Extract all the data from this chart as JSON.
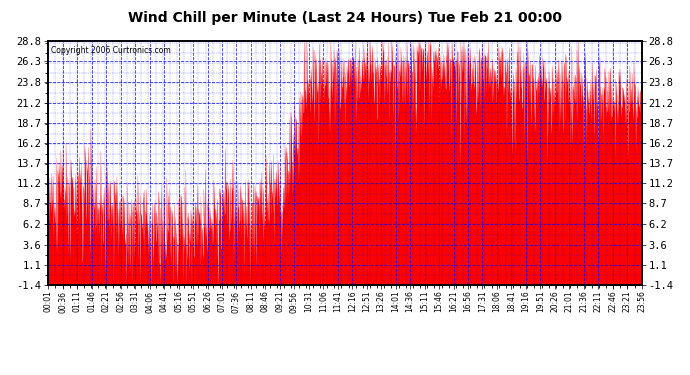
{
  "title": "Wind Chill per Minute (Last 24 Hours) Tue Feb 21 00:00",
  "copyright": "Copyright 2006 Curtronics.com",
  "background_color": "#ffffff",
  "plot_bg_color": "#ffffff",
  "grid_color": "#0000ff",
  "line_color": "#ff0000",
  "border_color": "#000000",
  "ylim": [
    -1.4,
    28.8
  ],
  "yticks": [
    -1.4,
    1.1,
    3.6,
    6.2,
    8.7,
    11.2,
    13.7,
    16.2,
    18.7,
    21.2,
    23.8,
    26.3,
    28.8
  ],
  "xtick_labels": [
    "00:01",
    "00:36",
    "01:11",
    "01:46",
    "02:21",
    "02:56",
    "03:31",
    "04:06",
    "04:41",
    "05:16",
    "05:51",
    "06:26",
    "07:01",
    "07:36",
    "08:11",
    "08:46",
    "09:21",
    "09:56",
    "10:31",
    "11:06",
    "11:41",
    "12:16",
    "12:51",
    "13:26",
    "14:01",
    "14:36",
    "15:11",
    "15:46",
    "16:21",
    "16:56",
    "17:31",
    "18:06",
    "18:41",
    "19:16",
    "19:51",
    "20:26",
    "21:01",
    "21:36",
    "22:11",
    "22:46",
    "23:21",
    "23:56"
  ],
  "n_points": 1440,
  "seed": 42
}
